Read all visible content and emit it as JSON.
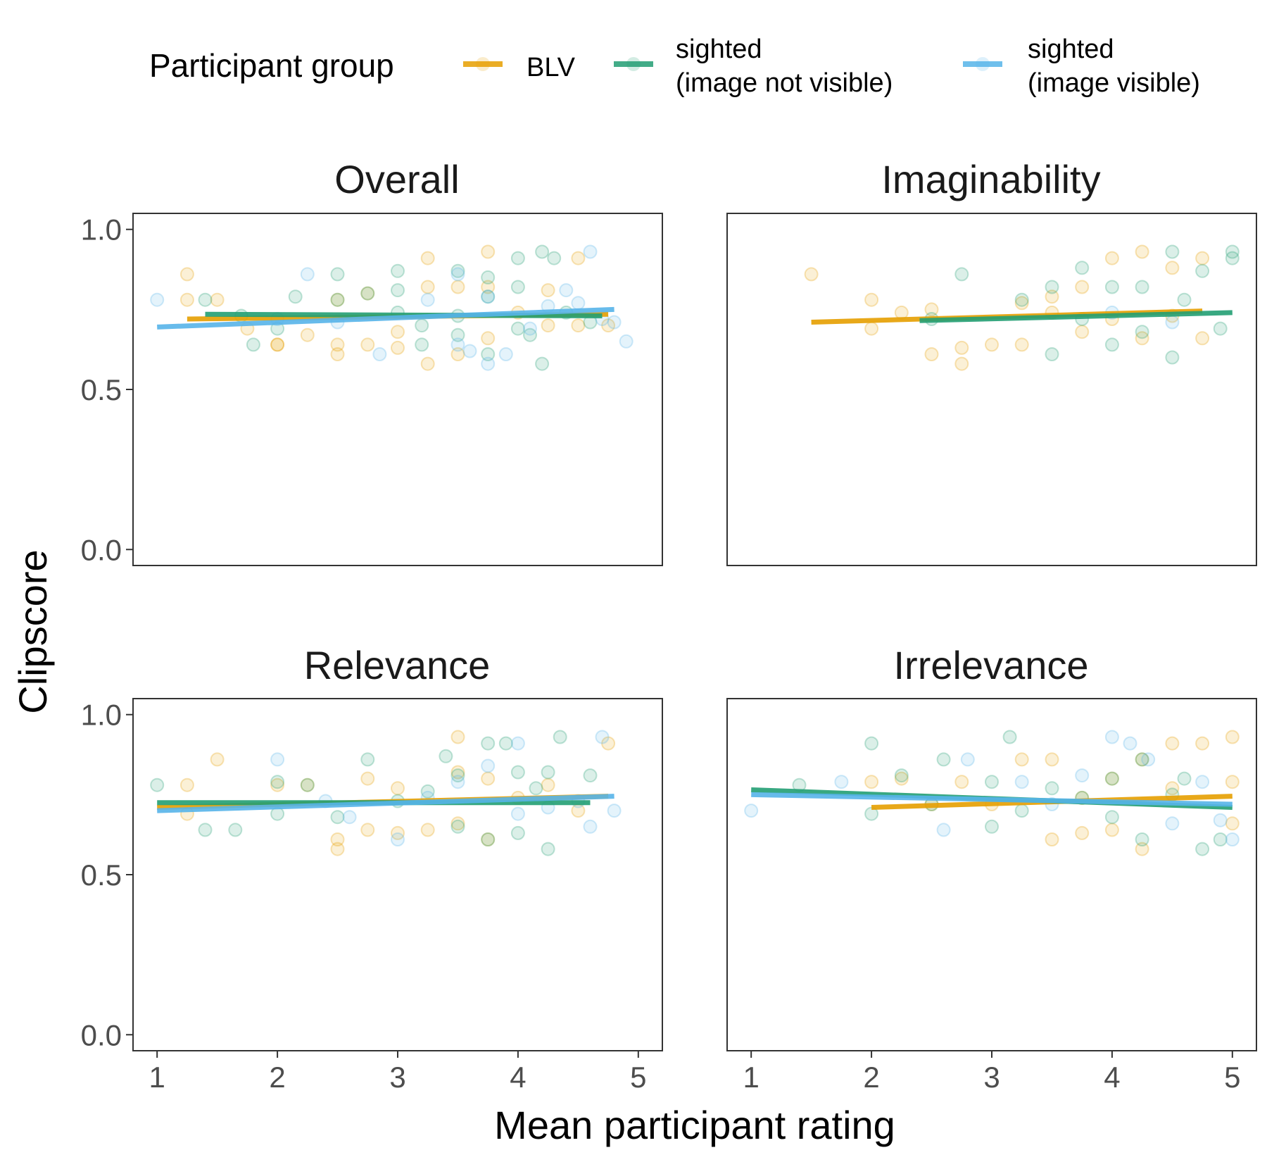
{
  "chart_data": {
    "type": "scatter",
    "xlabel": "Mean participant rating",
    "ylabel": "Clipscore",
    "xlim": [
      0.8,
      5.2
    ],
    "ylim": [
      -0.05,
      1.05
    ],
    "xticks": [
      1,
      2,
      3,
      4,
      5
    ],
    "yticks": [
      0.0,
      0.5,
      1.0
    ],
    "xtick_labels": [
      "1",
      "2",
      "3",
      "4",
      "5"
    ],
    "ytick_labels": [
      "0.0",
      "0.5",
      "1.0"
    ],
    "legend": {
      "title": "Participant group",
      "position": "top",
      "entries": [
        {
          "key": "blv",
          "lines": [
            "BLV"
          ],
          "color": "#E69F00"
        },
        {
          "key": "sighted_not_visible",
          "lines": [
            "sighted",
            "(image not visible)"
          ],
          "color": "#229E73"
        },
        {
          "key": "sighted_visible",
          "lines": [
            "sighted",
            "(image visible)"
          ],
          "color": "#56B4E9"
        }
      ]
    },
    "panels": [
      {
        "title": "Overall",
        "trend_lines": [
          {
            "series": "blv",
            "x": [
              1.25,
              4.75
            ],
            "y": [
              0.72,
              0.735
            ]
          },
          {
            "series": "sighted_not_visible",
            "x": [
              1.4,
              4.7
            ],
            "y": [
              0.735,
              0.73
            ]
          },
          {
            "series": "sighted_visible",
            "x": [
              1.0,
              4.8
            ],
            "y": [
              0.695,
              0.75
            ]
          }
        ],
        "points": {
          "blv": [
            [
              1.25,
              0.86
            ],
            [
              1.25,
              0.78
            ],
            [
              1.5,
              0.78
            ],
            [
              1.75,
              0.69
            ],
            [
              2.0,
              0.64
            ],
            [
              2.0,
              0.64
            ],
            [
              2.25,
              0.67
            ],
            [
              2.5,
              0.78
            ],
            [
              2.5,
              0.61
            ],
            [
              2.5,
              0.64
            ],
            [
              2.75,
              0.8
            ],
            [
              2.75,
              0.64
            ],
            [
              3.0,
              0.68
            ],
            [
              3.0,
              0.63
            ],
            [
              3.25,
              0.91
            ],
            [
              3.25,
              0.82
            ],
            [
              3.25,
              0.58
            ],
            [
              3.5,
              0.82
            ],
            [
              3.5,
              0.61
            ],
            [
              3.75,
              0.93
            ],
            [
              3.75,
              0.82
            ],
            [
              3.75,
              0.66
            ],
            [
              4.0,
              0.74
            ],
            [
              4.25,
              0.81
            ],
            [
              4.25,
              0.7
            ],
            [
              4.5,
              0.91
            ],
            [
              4.5,
              0.7
            ],
            [
              4.75,
              0.7
            ]
          ],
          "sighted_not_visible": [
            [
              1.4,
              0.78
            ],
            [
              1.7,
              0.73
            ],
            [
              1.8,
              0.64
            ],
            [
              2.0,
              0.69
            ],
            [
              2.15,
              0.79
            ],
            [
              2.5,
              0.86
            ],
            [
              2.5,
              0.78
            ],
            [
              2.75,
              0.8
            ],
            [
              3.0,
              0.87
            ],
            [
              3.0,
              0.81
            ],
            [
              3.0,
              0.74
            ],
            [
              3.2,
              0.7
            ],
            [
              3.2,
              0.64
            ],
            [
              3.5,
              0.87
            ],
            [
              3.5,
              0.73
            ],
            [
              3.5,
              0.67
            ],
            [
              3.75,
              0.85
            ],
            [
              3.75,
              0.79
            ],
            [
              3.75,
              0.61
            ],
            [
              4.0,
              0.91
            ],
            [
              4.0,
              0.82
            ],
            [
              4.0,
              0.69
            ],
            [
              4.1,
              0.67
            ],
            [
              4.2,
              0.93
            ],
            [
              4.2,
              0.58
            ],
            [
              4.3,
              0.91
            ],
            [
              4.4,
              0.74
            ],
            [
              4.6,
              0.71
            ]
          ],
          "sighted_visible": [
            [
              1.0,
              0.78
            ],
            [
              2.0,
              0.72
            ],
            [
              2.25,
              0.86
            ],
            [
              2.5,
              0.71
            ],
            [
              2.85,
              0.61
            ],
            [
              3.25,
              0.78
            ],
            [
              3.5,
              0.86
            ],
            [
              3.5,
              0.64
            ],
            [
              3.6,
              0.62
            ],
            [
              3.75,
              0.79
            ],
            [
              3.75,
              0.58
            ],
            [
              3.9,
              0.61
            ],
            [
              4.1,
              0.69
            ],
            [
              4.25,
              0.76
            ],
            [
              4.4,
              0.81
            ],
            [
              4.5,
              0.77
            ],
            [
              4.6,
              0.93
            ],
            [
              4.7,
              0.72
            ],
            [
              4.8,
              0.71
            ],
            [
              4.9,
              0.65
            ]
          ]
        }
      },
      {
        "title": "Imaginability",
        "trend_lines": [
          {
            "series": "blv",
            "x": [
              1.5,
              4.75
            ],
            "y": [
              0.71,
              0.745
            ]
          },
          {
            "series": "sighted_not_visible",
            "x": [
              2.4,
              5.0
            ],
            "y": [
              0.715,
              0.74
            ]
          }
        ],
        "points": {
          "blv": [
            [
              1.5,
              0.86
            ],
            [
              2.0,
              0.78
            ],
            [
              2.0,
              0.69
            ],
            [
              2.25,
              0.74
            ],
            [
              2.5,
              0.75
            ],
            [
              2.5,
              0.61
            ],
            [
              2.75,
              0.63
            ],
            [
              2.75,
              0.58
            ],
            [
              3.0,
              0.64
            ],
            [
              3.25,
              0.77
            ],
            [
              3.25,
              0.64
            ],
            [
              3.5,
              0.79
            ],
            [
              3.5,
              0.74
            ],
            [
              3.75,
              0.82
            ],
            [
              3.75,
              0.68
            ],
            [
              4.0,
              0.91
            ],
            [
              4.0,
              0.72
            ],
            [
              4.25,
              0.93
            ],
            [
              4.25,
              0.66
            ],
            [
              4.5,
              0.88
            ],
            [
              4.5,
              0.73
            ],
            [
              4.75,
              0.91
            ],
            [
              4.75,
              0.66
            ]
          ],
          "sighted_not_visible": [
            [
              2.5,
              0.72
            ],
            [
              2.75,
              0.86
            ],
            [
              3.25,
              0.78
            ],
            [
              3.5,
              0.82
            ],
            [
              3.5,
              0.61
            ],
            [
              3.75,
              0.88
            ],
            [
              3.75,
              0.72
            ],
            [
              4.0,
              0.82
            ],
            [
              4.0,
              0.64
            ],
            [
              4.25,
              0.82
            ],
            [
              4.25,
              0.68
            ],
            [
              4.5,
              0.93
            ],
            [
              4.5,
              0.6
            ],
            [
              4.75,
              0.87
            ],
            [
              5.0,
              0.93
            ],
            [
              5.0,
              0.91
            ],
            [
              4.9,
              0.69
            ],
            [
              4.6,
              0.78
            ]
          ],
          "sighted_visible": [
            [
              4.0,
              0.74
            ],
            [
              4.5,
              0.71
            ]
          ]
        }
      },
      {
        "title": "Relevance",
        "trend_lines": [
          {
            "series": "blv",
            "x": [
              1.0,
              4.75
            ],
            "y": [
              0.71,
              0.745
            ]
          },
          {
            "series": "sighted_not_visible",
            "x": [
              1.0,
              4.6
            ],
            "y": [
              0.725,
              0.725
            ]
          },
          {
            "series": "sighted_visible",
            "x": [
              1.0,
              4.8
            ],
            "y": [
              0.7,
              0.745
            ]
          }
        ],
        "points": {
          "blv": [
            [
              1.25,
              0.78
            ],
            [
              1.25,
              0.69
            ],
            [
              1.5,
              0.86
            ],
            [
              2.0,
              0.78
            ],
            [
              2.25,
              0.78
            ],
            [
              2.5,
              0.61
            ],
            [
              2.5,
              0.58
            ],
            [
              2.75,
              0.8
            ],
            [
              2.75,
              0.64
            ],
            [
              3.0,
              0.77
            ],
            [
              3.0,
              0.63
            ],
            [
              3.25,
              0.64
            ],
            [
              3.5,
              0.93
            ],
            [
              3.5,
              0.82
            ],
            [
              3.5,
              0.66
            ],
            [
              3.75,
              0.8
            ],
            [
              3.75,
              0.61
            ],
            [
              4.0,
              0.74
            ],
            [
              4.25,
              0.78
            ],
            [
              4.5,
              0.7
            ],
            [
              4.75,
              0.91
            ]
          ],
          "sighted_not_visible": [
            [
              1.0,
              0.78
            ],
            [
              1.4,
              0.64
            ],
            [
              1.65,
              0.64
            ],
            [
              2.0,
              0.79
            ],
            [
              2.0,
              0.69
            ],
            [
              2.25,
              0.78
            ],
            [
              2.5,
              0.68
            ],
            [
              2.75,
              0.86
            ],
            [
              3.0,
              0.73
            ],
            [
              3.25,
              0.76
            ],
            [
              3.4,
              0.87
            ],
            [
              3.5,
              0.81
            ],
            [
              3.5,
              0.65
            ],
            [
              3.75,
              0.91
            ],
            [
              3.75,
              0.61
            ],
            [
              3.9,
              0.91
            ],
            [
              4.0,
              0.82
            ],
            [
              4.0,
              0.63
            ],
            [
              4.15,
              0.77
            ],
            [
              4.25,
              0.82
            ],
            [
              4.25,
              0.58
            ],
            [
              4.35,
              0.93
            ],
            [
              4.6,
              0.81
            ]
          ],
          "sighted_visible": [
            [
              2.0,
              0.86
            ],
            [
              2.4,
              0.73
            ],
            [
              2.6,
              0.68
            ],
            [
              3.0,
              0.61
            ],
            [
              3.25,
              0.74
            ],
            [
              3.5,
              0.79
            ],
            [
              3.75,
              0.84
            ],
            [
              4.0,
              0.91
            ],
            [
              4.0,
              0.69
            ],
            [
              4.25,
              0.71
            ],
            [
              4.5,
              0.73
            ],
            [
              4.7,
              0.93
            ],
            [
              4.6,
              0.65
            ],
            [
              4.8,
              0.7
            ]
          ]
        }
      },
      {
        "title": "Irrelevance",
        "trend_lines": [
          {
            "series": "blv",
            "x": [
              2.0,
              5.0
            ],
            "y": [
              0.71,
              0.745
            ]
          },
          {
            "series": "sighted_not_visible",
            "x": [
              1.0,
              5.0
            ],
            "y": [
              0.765,
              0.71
            ]
          },
          {
            "series": "sighted_visible",
            "x": [
              1.0,
              5.0
            ],
            "y": [
              0.75,
              0.72
            ]
          }
        ],
        "points": {
          "blv": [
            [
              2.0,
              0.79
            ],
            [
              2.25,
              0.8
            ],
            [
              2.5,
              0.72
            ],
            [
              2.75,
              0.79
            ],
            [
              3.0,
              0.72
            ],
            [
              3.25,
              0.86
            ],
            [
              3.5,
              0.86
            ],
            [
              3.5,
              0.61
            ],
            [
              3.75,
              0.74
            ],
            [
              3.75,
              0.63
            ],
            [
              4.0,
              0.8
            ],
            [
              4.0,
              0.64
            ],
            [
              4.25,
              0.86
            ],
            [
              4.25,
              0.58
            ],
            [
              4.5,
              0.91
            ],
            [
              4.5,
              0.77
            ],
            [
              4.75,
              0.91
            ],
            [
              5.0,
              0.93
            ],
            [
              5.0,
              0.79
            ],
            [
              5.0,
              0.66
            ]
          ],
          "sighted_not_visible": [
            [
              1.4,
              0.78
            ],
            [
              2.0,
              0.91
            ],
            [
              2.0,
              0.69
            ],
            [
              2.25,
              0.81
            ],
            [
              2.5,
              0.72
            ],
            [
              2.6,
              0.86
            ],
            [
              3.0,
              0.79
            ],
            [
              3.0,
              0.65
            ],
            [
              3.15,
              0.93
            ],
            [
              3.25,
              0.7
            ],
            [
              3.5,
              0.77
            ],
            [
              3.75,
              0.74
            ],
            [
              4.0,
              0.8
            ],
            [
              4.0,
              0.68
            ],
            [
              4.25,
              0.86
            ],
            [
              4.25,
              0.61
            ],
            [
              4.5,
              0.75
            ],
            [
              4.6,
              0.8
            ],
            [
              4.75,
              0.58
            ],
            [
              4.9,
              0.61
            ]
          ],
          "sighted_visible": [
            [
              1.0,
              0.7
            ],
            [
              1.75,
              0.79
            ],
            [
              2.6,
              0.64
            ],
            [
              2.8,
              0.86
            ],
            [
              3.25,
              0.79
            ],
            [
              3.5,
              0.72
            ],
            [
              3.75,
              0.81
            ],
            [
              4.0,
              0.93
            ],
            [
              4.15,
              0.91
            ],
            [
              4.3,
              0.86
            ],
            [
              4.5,
              0.66
            ],
            [
              4.75,
              0.79
            ],
            [
              4.9,
              0.67
            ],
            [
              5.0,
              0.61
            ]
          ]
        }
      }
    ]
  }
}
